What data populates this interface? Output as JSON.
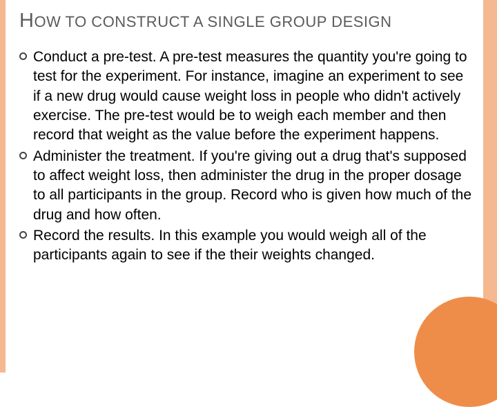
{
  "slide": {
    "title_html": "H<span class='small'>OW TO CONSTRUCT A SINGLE GROUP DESIGN</span>",
    "title_cap": "H",
    "title_rest": "OW TO CONSTRUCT A SINGLE GROUP DESIGN",
    "bullets": [
      "Conduct a pre-test. A pre-test measures the quantity you're going to test for the experiment. For instance, imagine an experiment to see if a new drug would cause weight loss in people who didn't actively exercise. The pre-test would be to weigh each member and then record that weight as the value before the experiment happens.",
      "Administer the treatment. If you're giving out a drug that's supposed to affect weight loss, then administer the drug in the proper dosage to all participants in the group. Record who is given how much of the drug and how often.",
      "Record the results. In this example you would weigh all of the participants again to see if the their weights changed."
    ]
  },
  "style": {
    "stripe_color": "#f5b890",
    "circle_color": "#ee8d4a",
    "title_color": "#5b5b5b",
    "text_color": "#000000",
    "background": "#ffffff",
    "title_fontsize_small": 22,
    "title_fontsize_cap": 29,
    "body_fontsize": 21
  }
}
